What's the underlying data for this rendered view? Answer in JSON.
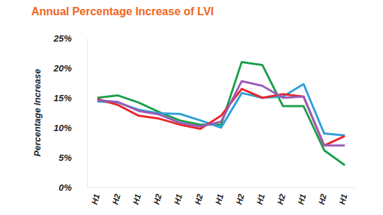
{
  "chart_data": {
    "type": "line",
    "title": "Annual Percentage Increase of LVI",
    "y_label": "Percentage Increase",
    "categories": [
      "H1",
      "H2",
      "H1",
      "H2",
      "H1",
      "H2",
      "H1",
      "H2",
      "H1",
      "H2",
      "H1",
      "H2",
      "H1"
    ],
    "series": [
      {
        "color": "#1a9e4b",
        "values": [
          15,
          15.4,
          14.2,
          12.6,
          11.2,
          10.5,
          10.5,
          21,
          20.5,
          13.6,
          13.6,
          6.2,
          3.7
        ]
      },
      {
        "color": "#2b9fd9",
        "values": [
          14.4,
          14.2,
          13,
          12.4,
          12.3,
          11.2,
          10,
          15.8,
          15,
          15.2,
          17.3,
          9,
          8.7
        ]
      },
      {
        "color": "#e8262b",
        "values": [
          14.8,
          13.8,
          12,
          11.5,
          10.5,
          9.8,
          12,
          16.5,
          15,
          15.6,
          15.2,
          7,
          8.6
        ]
      },
      {
        "color": "#9b59b6",
        "values": [
          14.6,
          14.3,
          12.8,
          12.2,
          10.8,
          10.2,
          11,
          17.8,
          17,
          15,
          15.2,
          7,
          7
        ]
      }
    ],
    "ylim": [
      0,
      25
    ],
    "yticks": [
      {
        "value": 0,
        "label": "0%"
      },
      {
        "value": 5,
        "label": "5%"
      },
      {
        "value": 10,
        "label": "10%"
      },
      {
        "value": 15,
        "label": "15%"
      },
      {
        "value": 20,
        "label": "20%"
      },
      {
        "value": 25,
        "label": "25%"
      }
    ],
    "grid": false
  }
}
